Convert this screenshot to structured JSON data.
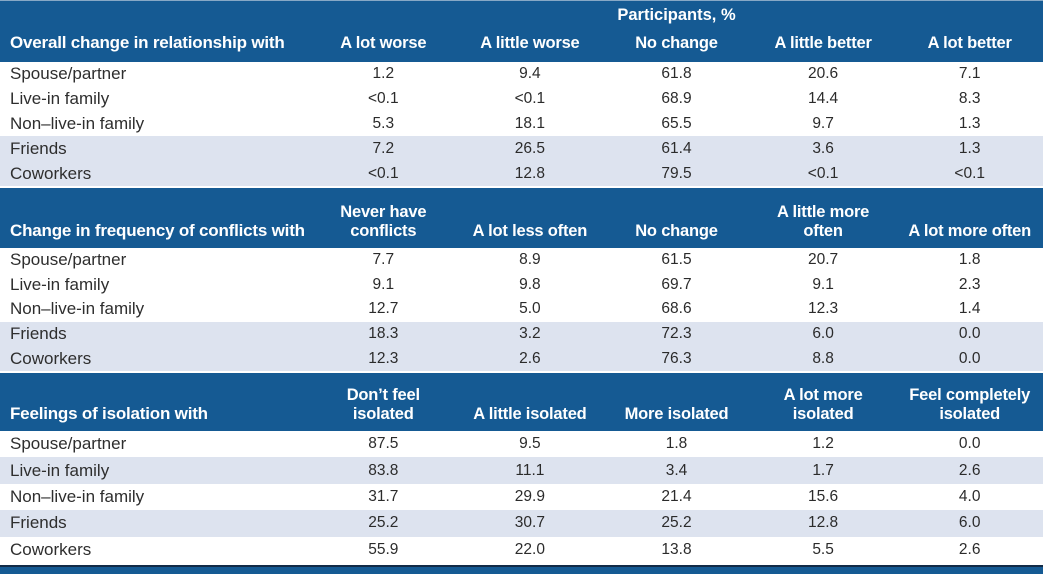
{
  "table": {
    "top_header": "Participants, %",
    "sections": [
      {
        "title": "Overall change in relationship with",
        "columns": [
          "A lot worse",
          "A little worse",
          "No change",
          "A little better",
          "A lot better"
        ],
        "rows": [
          {
            "label": "Spouse/partner",
            "values": [
              "1.2",
              "9.4",
              "61.8",
              "20.6",
              "7.1"
            ]
          },
          {
            "label": "Live-in family",
            "values": [
              "<0.1",
              "<0.1",
              "68.9",
              "14.4",
              "8.3"
            ]
          },
          {
            "label": "Non–live-in family",
            "values": [
              "5.3",
              "18.1",
              "65.5",
              "9.7",
              "1.3"
            ]
          },
          {
            "label": "Friends",
            "values": [
              "7.2",
              "26.5",
              "61.4",
              "3.6",
              "1.3"
            ]
          },
          {
            "label": "Coworkers",
            "values": [
              "<0.1",
              "12.8",
              "79.5",
              "<0.1",
              "<0.1"
            ]
          }
        ]
      },
      {
        "title": "Change in frequency of conflicts with",
        "columns": [
          "Never have\nconflicts",
          "A lot less often",
          "No change",
          "A little more\noften",
          "A lot more often"
        ],
        "rows": [
          {
            "label": "Spouse/partner",
            "values": [
              "7.7",
              "8.9",
              "61.5",
              "20.7",
              "1.8"
            ]
          },
          {
            "label": "Live-in family",
            "values": [
              "9.1",
              "9.8",
              "69.7",
              "9.1",
              "2.3"
            ]
          },
          {
            "label": "Non–live-in family",
            "values": [
              "12.7",
              "5.0",
              "68.6",
              "12.3",
              "1.4"
            ]
          },
          {
            "label": "Friends",
            "values": [
              "18.3",
              "3.2",
              "72.3",
              "6.0",
              "0.0"
            ]
          },
          {
            "label": "Coworkers",
            "values": [
              "12.3",
              "2.6",
              "76.3",
              "8.8",
              "0.0"
            ]
          }
        ]
      },
      {
        "title": "Feelings of isolation with",
        "columns": [
          "Don’t feel\nisolated",
          "A little isolated",
          "More isolated",
          "A lot more\nisolated",
          "Feel completely\nisolated"
        ],
        "rows": [
          {
            "label": "Spouse/partner",
            "values": [
              "87.5",
              "9.5",
              "1.8",
              "1.2",
              "0.0"
            ]
          },
          {
            "label": "Live-in family",
            "values": [
              "83.8",
              "11.1",
              "3.4",
              "1.7",
              "2.6"
            ]
          },
          {
            "label": "Non–live-in family",
            "values": [
              "31.7",
              "29.9",
              "21.4",
              "15.6",
              "4.0"
            ]
          },
          {
            "label": "Friends",
            "values": [
              "25.2",
              "30.7",
              "25.2",
              "12.8",
              "6.0"
            ]
          },
          {
            "label": "Coworkers",
            "values": [
              "55.9",
              "22.0",
              "13.8",
              "5.5",
              "2.6"
            ]
          }
        ]
      }
    ],
    "colors": {
      "header_blue": "#155a93",
      "row_shade": "#dde3ef",
      "bottom_bar_line": "#122b47"
    }
  }
}
